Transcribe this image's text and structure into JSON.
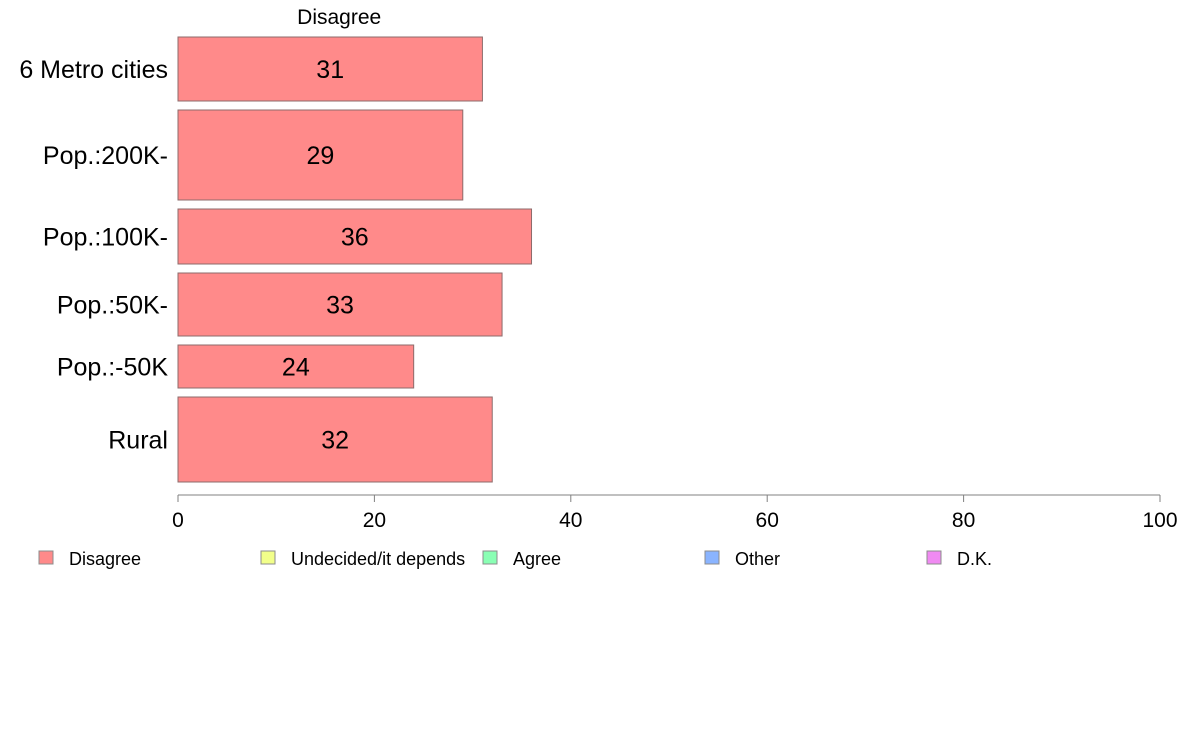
{
  "chart_data": {
    "type": "bar",
    "orientation": "horizontal",
    "column_title": "Disagree",
    "categories": [
      "6 Metro cities",
      "Pop.:200K-",
      "Pop.:100K-",
      "Pop.:50K-",
      "Pop.:-50K",
      "Rural"
    ],
    "series": [
      {
        "name": "Disagree",
        "color": "#ff8a8a",
        "values": [
          31,
          29,
          36,
          33,
          24,
          32
        ],
        "labels": [
          "31",
          "29",
          "36",
          "33",
          "24",
          "32"
        ]
      }
    ],
    "xlim": [
      0,
      100
    ],
    "xticks": [
      0,
      20,
      40,
      60,
      80,
      100
    ],
    "xtick_labels": [
      "0",
      "20",
      "40",
      "60",
      "80",
      "100"
    ],
    "grid": false,
    "legend_position": "bottom",
    "legend": [
      {
        "label": "Disagree",
        "color": "#ff8a8a"
      },
      {
        "label": "Undecided/it depends",
        "color": "#f2ff8a"
      },
      {
        "label": "Agree",
        "color": "#8affb4"
      },
      {
        "label": "Other",
        "color": "#8ab4ff"
      },
      {
        "label": "D.K.",
        "color": "#f08af2"
      }
    ]
  }
}
